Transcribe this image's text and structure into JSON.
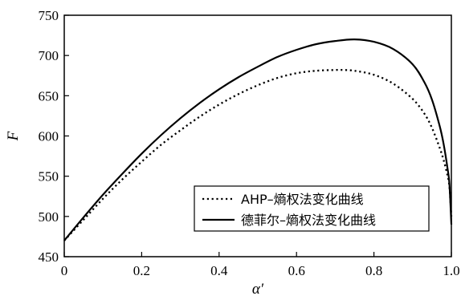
{
  "chart_data": {
    "type": "line",
    "xlabel": "α′",
    "ylabel": "F",
    "xlim": [
      0,
      1.0
    ],
    "ylim": [
      450,
      750
    ],
    "xticks": [
      0,
      0.2,
      0.4,
      0.6,
      0.8,
      1.0
    ],
    "xtick_labels": [
      "0",
      "0.2",
      "0.4",
      "0.6",
      "0.8",
      "1.0"
    ],
    "yticks": [
      450,
      500,
      550,
      600,
      650,
      700,
      750
    ],
    "ytick_labels": [
      "450",
      "500",
      "550",
      "600",
      "650",
      "700",
      "750"
    ],
    "grid": false,
    "legend_position": "lower-right",
    "series": [
      {
        "name": "AHP–熵权法变化曲线",
        "style": "dotted",
        "color": "#000000",
        "x": [
          0,
          0.05,
          0.1,
          0.15,
          0.2,
          0.25,
          0.3,
          0.35,
          0.4,
          0.45,
          0.5,
          0.55,
          0.6,
          0.65,
          0.7,
          0.72,
          0.75,
          0.8,
          0.85,
          0.9,
          0.93,
          0.95,
          0.97,
          0.98,
          0.99,
          0.995,
          1.0
        ],
        "y": [
          470,
          496,
          522,
          546,
          568,
          589,
          607,
          624,
          639,
          652,
          663,
          672,
          678,
          681,
          682,
          682,
          681,
          676,
          665,
          646,
          628,
          610,
          585,
          570,
          551,
          537,
          500
        ]
      },
      {
        "name": "德菲尔–熵权法变化曲线",
        "style": "solid",
        "color": "#000000",
        "x": [
          0,
          0.05,
          0.1,
          0.15,
          0.2,
          0.25,
          0.3,
          0.35,
          0.4,
          0.45,
          0.5,
          0.55,
          0.6,
          0.65,
          0.7,
          0.75,
          0.8,
          0.85,
          0.9,
          0.93,
          0.95,
          0.97,
          0.98,
          0.99,
          0.995,
          1.0
        ],
        "y": [
          470,
          499,
          527,
          553,
          578,
          601,
          622,
          641,
          658,
          673,
          686,
          698,
          707,
          714,
          718,
          720,
          717,
          708,
          689,
          667,
          645,
          612,
          590,
          560,
          540,
          490
        ]
      }
    ]
  }
}
